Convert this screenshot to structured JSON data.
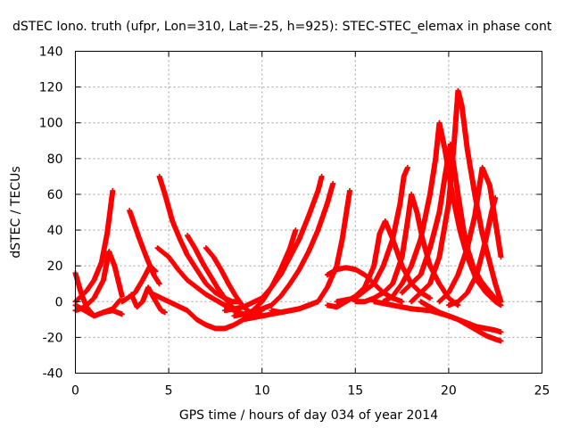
{
  "chart_data": {
    "type": "scatter",
    "title": "dSTEC Iono. truth (ufpr, Lon=310, Lat=-25, h=925): STEC-STEC_elemax in phase cont",
    "xlabel": "GPS time / hours of day 034 of year 2014",
    "ylabel": "dSTEC  / TECUs",
    "xlim": [
      0,
      25
    ],
    "ylim": [
      -40,
      140
    ],
    "xticks": [
      "0",
      "5",
      "10",
      "15",
      "20",
      "25"
    ],
    "yticks": [
      "-40",
      "-20",
      "0",
      "20",
      "40",
      "60",
      "80",
      "100",
      "120",
      "140"
    ],
    "grid": true,
    "marker": "+",
    "color": "#ff0000",
    "series": [
      {
        "x": [
          0.0,
          0.3,
          0.6,
          1.0,
          1.4,
          1.7,
          1.85,
          2.0
        ],
        "y": [
          0,
          3,
          6,
          12,
          22,
          38,
          50,
          62
        ]
      },
      {
        "x": [
          0.0,
          0.5,
          1.0,
          1.5,
          1.8,
          2.1,
          2.5
        ],
        "y": [
          -5,
          -3,
          2,
          12,
          28,
          20,
          3
        ]
      },
      {
        "x": [
          0.0,
          0.3,
          0.6,
          1.0,
          1.5,
          2.0,
          2.5
        ],
        "y": [
          16,
          5,
          -3,
          -8,
          -6,
          -5,
          -7
        ]
      },
      {
        "x": [
          0.0,
          0.5,
          1.0,
          1.5,
          2.0,
          2.4
        ],
        "y": [
          -2,
          -5,
          -8,
          -6,
          -4,
          1
        ]
      },
      {
        "x": [
          2.9,
          3.1,
          3.4,
          3.8,
          4.2,
          4.5
        ],
        "y": [
          51,
          45,
          36,
          25,
          15,
          10
        ]
      },
      {
        "x": [
          2.5,
          2.8,
          3.2,
          3.6,
          4.0,
          4.3
        ],
        "y": [
          0,
          2,
          5,
          12,
          20,
          17
        ]
      },
      {
        "x": [
          3.0,
          3.3,
          3.6,
          3.9,
          4.2,
          4.6,
          4.8
        ],
        "y": [
          4,
          -3,
          0,
          8,
          2,
          -5,
          -6
        ]
      },
      {
        "x": [
          4.5,
          4.8,
          5.2,
          5.6,
          6.0,
          6.5,
          7.0,
          7.5,
          8.0,
          8.4,
          8.7
        ],
        "y": [
          70,
          60,
          45,
          35,
          26,
          18,
          10,
          5,
          2,
          0,
          0
        ]
      },
      {
        "x": [
          4.4,
          5.0,
          5.5,
          6.0,
          6.5,
          7.0,
          7.5,
          8.0,
          8.5,
          9.0,
          9.3
        ],
        "y": [
          30,
          25,
          18,
          12,
          8,
          4,
          1,
          -2,
          -5,
          -7,
          -8
        ]
      },
      {
        "x": [
          6.0,
          6.4,
          6.8,
          7.2,
          7.6,
          8.0,
          8.4,
          8.8
        ],
        "y": [
          37,
          30,
          22,
          15,
          8,
          2,
          -3,
          -7
        ]
      },
      {
        "x": [
          7.0,
          7.4,
          7.8,
          8.2,
          8.6,
          9.0,
          9.5
        ],
        "y": [
          30,
          25,
          18,
          10,
          3,
          -3,
          -7
        ]
      },
      {
        "x": [
          4.0,
          5.0,
          6.0,
          6.5,
          7.0,
          7.5,
          8.0,
          8.5,
          9.0,
          9.5,
          10.0
        ],
        "y": [
          5,
          0,
          -5,
          -10,
          -13,
          -15,
          -15,
          -13,
          -10,
          -7,
          -5
        ]
      },
      {
        "x": [
          8.0,
          9.0,
          10.0,
          10.5,
          11.0,
          11.5,
          12.0,
          12.5,
          13.0,
          13.2
        ],
        "y": [
          -5,
          -3,
          2,
          8,
          15,
          25,
          35,
          48,
          62,
          70
        ]
      },
      {
        "x": [
          8.5,
          9.5,
          10.5,
          11.0,
          11.5,
          12.0,
          12.5,
          13.0,
          13.5,
          13.8
        ],
        "y": [
          -8,
          -6,
          -2,
          3,
          10,
          18,
          28,
          40,
          55,
          66
        ]
      },
      {
        "x": [
          9.0,
          9.5,
          10.0,
          10.5,
          11.0,
          11.5,
          11.8
        ],
        "y": [
          -8,
          -5,
          0,
          8,
          18,
          30,
          40
        ]
      },
      {
        "x": [
          10.5,
          11.0,
          12.0,
          13.0,
          13.5,
          14.0,
          14.3,
          14.7
        ],
        "y": [
          -5,
          -6,
          -4,
          0,
          8,
          20,
          35,
          62
        ]
      },
      {
        "x": [
          9.0,
          10.0,
          11.0,
          12.0,
          12.5,
          13.0
        ],
        "y": [
          -10,
          -8,
          -6,
          -4,
          -2,
          0
        ]
      },
      {
        "x": [
          13.5,
          14.0,
          14.5,
          15.0,
          15.5,
          16.0,
          16.3,
          16.6,
          17.0,
          17.5,
          18.0,
          18.5,
          19.0
        ],
        "y": [
          -2,
          -3,
          0,
          3,
          8,
          20,
          38,
          45,
          35,
          20,
          10,
          5,
          2
        ]
      },
      {
        "x": [
          14.0,
          15.0,
          16.0,
          16.5,
          17.0,
          17.4,
          17.6,
          17.8
        ],
        "y": [
          0,
          2,
          10,
          20,
          35,
          55,
          70,
          75
        ]
      },
      {
        "x": [
          13.5,
          14.0,
          14.5,
          15.0,
          15.5,
          16.0,
          16.5,
          17.0,
          17.5
        ],
        "y": [
          15,
          18,
          19,
          18,
          15,
          10,
          5,
          2,
          0
        ]
      },
      {
        "x": [
          15.0,
          15.5,
          16.0,
          16.5,
          17.0,
          17.5,
          17.8,
          18.0,
          18.3,
          18.6,
          19.0,
          19.5,
          20.0,
          20.5
        ],
        "y": [
          0,
          0,
          2,
          5,
          10,
          25,
          45,
          60,
          50,
          35,
          20,
          10,
          2,
          -2
        ]
      },
      {
        "x": [
          16.5,
          17.0,
          17.5,
          18.0,
          18.5,
          19.0,
          19.3,
          19.5,
          19.8,
          20.2,
          20.6,
          21.0,
          21.5,
          22.0,
          22.5,
          22.8
        ],
        "y": [
          0,
          3,
          10,
          20,
          35,
          60,
          80,
          100,
          85,
          60,
          40,
          25,
          12,
          5,
          0,
          -2
        ]
      },
      {
        "x": [
          17.5,
          18.5,
          19.0,
          19.5,
          19.8,
          20.1,
          20.5,
          20.8,
          21.0,
          21.3,
          21.7,
          22.0,
          22.4,
          22.7
        ],
        "y": [
          5,
          15,
          30,
          50,
          70,
          88,
          60,
          40,
          30,
          20,
          12,
          8,
          3,
          0
        ]
      },
      {
        "x": [
          18.0,
          19.0,
          19.5,
          20.0,
          20.3,
          20.5,
          20.7,
          21.0,
          21.4,
          21.8,
          22.2,
          22.5,
          22.8
        ],
        "y": [
          0,
          10,
          25,
          55,
          90,
          118,
          110,
          85,
          60,
          38,
          22,
          10,
          0
        ]
      },
      {
        "x": [
          19.5,
          20.0,
          20.5,
          21.0,
          21.4,
          21.8,
          22.2,
          22.5,
          22.8
        ],
        "y": [
          0,
          5,
          15,
          30,
          48,
          75,
          65,
          45,
          25
        ]
      },
      {
        "x": [
          20.0,
          20.5,
          21.0,
          21.5,
          22.0,
          22.3,
          22.5
        ],
        "y": [
          -2,
          0,
          5,
          15,
          35,
          50,
          58
        ]
      },
      {
        "x": [
          18.5,
          19.0,
          19.5,
          20.0,
          20.5,
          21.0,
          21.5,
          22.0,
          22.5,
          22.8
        ],
        "y": [
          0,
          -3,
          -6,
          -8,
          -10,
          -12,
          -14,
          -15,
          -16,
          -17
        ]
      },
      {
        "x": [
          16.0,
          17.0,
          18.0,
          19.0,
          20.0,
          20.5,
          21.0,
          21.5,
          22.0,
          22.5,
          22.8
        ],
        "y": [
          0,
          -2,
          -4,
          -5,
          -8,
          -10,
          -13,
          -16,
          -19,
          -21,
          -22
        ]
      }
    ]
  }
}
